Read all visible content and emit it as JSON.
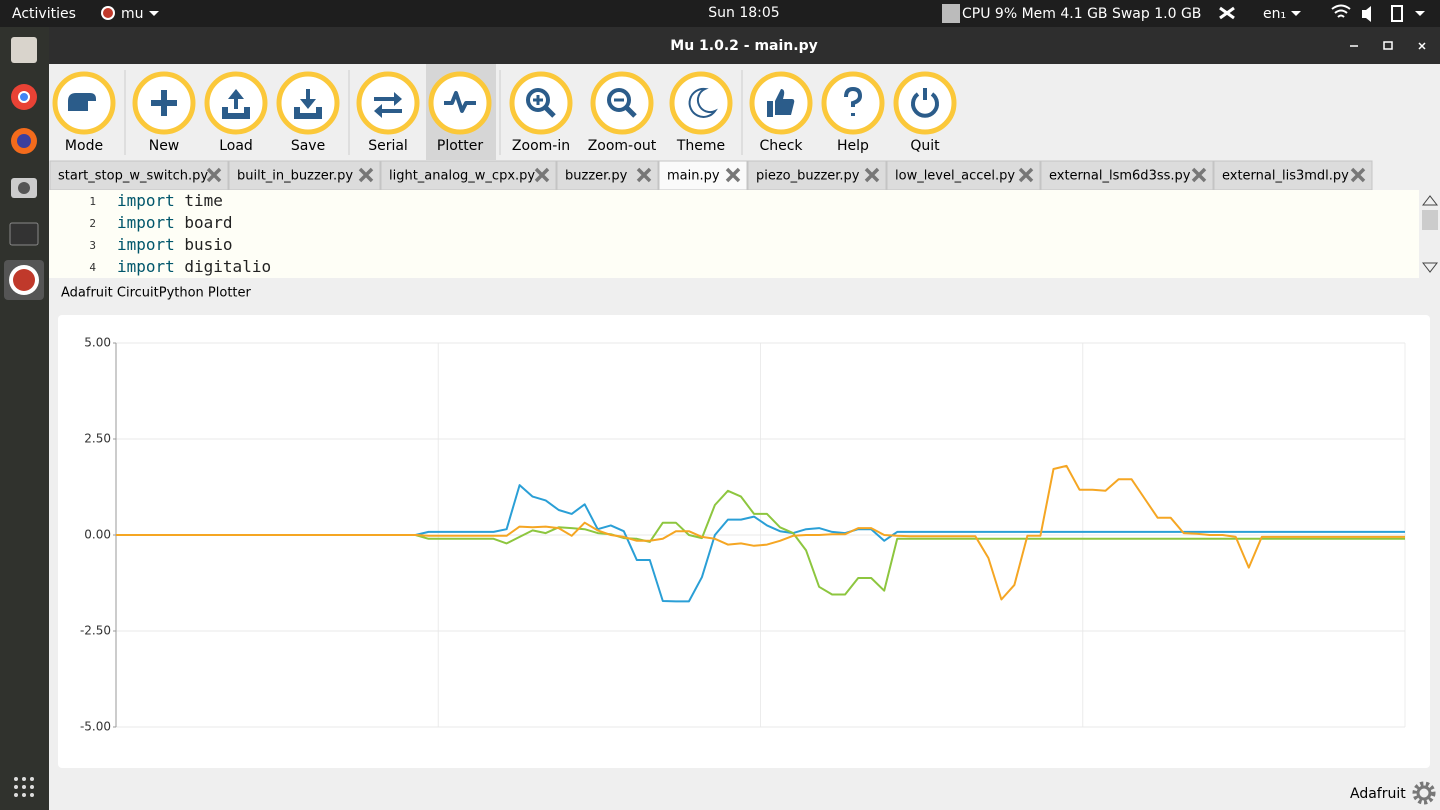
{
  "topbar": {
    "activities": "Activities",
    "app": "mu",
    "clock": "Sun 18:05",
    "sysmon": "CPU 9% Mem 4.1 GB Swap 1.0 GB",
    "lang": "en₁"
  },
  "window": {
    "title": "Mu 1.0.2 - main.py"
  },
  "toolbar": [
    "Mode",
    "New",
    "Load",
    "Save",
    "Serial",
    "Plotter",
    "Zoom-in",
    "Zoom-out",
    "Theme",
    "Check",
    "Help",
    "Quit"
  ],
  "active_button": 5,
  "tabs": [
    "start_stop_w_switch.py",
    "built_in_buzzer.py",
    "light_analog_w_cpx.py",
    "buzzer.py",
    "main.py",
    "piezo_buzzer.py",
    "low_level_accel.py",
    "external_lsm6d3ss.py",
    "external_lis3mdl.py"
  ],
  "active_tab": 4,
  "editor": {
    "lines": [
      {
        "number": 1,
        "keyword": "import",
        "name": "time"
      },
      {
        "number": 2,
        "keyword": "import",
        "name": "board"
      },
      {
        "number": 3,
        "keyword": "import",
        "name": "busio"
      },
      {
        "number": 4,
        "keyword": "import",
        "name": "digitalio"
      }
    ]
  },
  "plotter_title": "Adafruit CircuitPython Plotter",
  "status": "Adafruit",
  "chart_data": {
    "type": "line",
    "ylim": [
      -5,
      5
    ],
    "yticks": [
      {
        "value": 5,
        "label": "5.00"
      },
      {
        "value": 2.5,
        "label": "2.50"
      },
      {
        "value": 0,
        "label": "0.00"
      },
      {
        "value": -2.5,
        "label": "-2.50"
      },
      {
        "value": -5,
        "label": "-5.00"
      }
    ],
    "grid": true,
    "series": [
      {
        "color": "#2a9fd6",
        "values": [
          0,
          0,
          0,
          0,
          0,
          0,
          0,
          0,
          0,
          0,
          0,
          0,
          0,
          0,
          0,
          0,
          0,
          0,
          0,
          0,
          0,
          0,
          0,
          0,
          0.08,
          0.08,
          0.08,
          0.08,
          0.08,
          0.08,
          0.15,
          1.3,
          1.0,
          0.9,
          0.65,
          0.55,
          0.8,
          0.15,
          0.25,
          0.1,
          -0.65,
          -0.65,
          -1.72,
          -1.73,
          -1.73,
          -1.1,
          0.0,
          0.4,
          0.4,
          0.48,
          0.25,
          0.1,
          0.05,
          0.15,
          0.18,
          0.08,
          0.05,
          0.15,
          0.15,
          -0.15,
          0.08,
          0.08,
          0.08,
          0.08,
          0.08,
          0.08,
          0.08,
          0.08,
          0.08,
          0.08,
          0.08,
          0.08,
          0.08,
          0.08,
          0.08,
          0.08,
          0.08,
          0.08,
          0.08,
          0.08,
          0.08,
          0.08,
          0.08,
          0.08,
          0.08,
          0.08,
          0.08,
          0.08,
          0.08,
          0.08,
          0.08,
          0.08,
          0.08,
          0.08,
          0.08,
          0.08,
          0.08,
          0.08,
          0.08,
          0.08
        ]
      },
      {
        "color": "#8dc63f",
        "values": [
          0,
          0,
          0,
          0,
          0,
          0,
          0,
          0,
          0,
          0,
          0,
          0,
          0,
          0,
          0,
          0,
          0,
          0,
          0,
          0,
          0,
          0,
          0,
          0,
          -0.1,
          -0.1,
          -0.1,
          -0.1,
          -0.1,
          -0.1,
          -0.22,
          -0.05,
          0.12,
          0.05,
          0.2,
          0.18,
          0.15,
          0.05,
          0.02,
          -0.08,
          -0.1,
          -0.18,
          0.32,
          0.32,
          0.0,
          -0.08,
          0.78,
          1.15,
          1.0,
          0.55,
          0.55,
          0.2,
          0.05,
          -0.4,
          -1.35,
          -1.55,
          -1.55,
          -1.12,
          -1.12,
          -1.45,
          -0.1,
          -0.1,
          -0.1,
          -0.1,
          -0.1,
          -0.1,
          -0.1,
          -0.1,
          -0.1,
          -0.1,
          -0.1,
          -0.1,
          -0.1,
          -0.1,
          -0.1,
          -0.1,
          -0.1,
          -0.1,
          -0.1,
          -0.1,
          -0.1,
          -0.1,
          -0.1,
          -0.1,
          -0.1,
          -0.1,
          -0.1,
          -0.1,
          -0.1,
          -0.1,
          -0.1,
          -0.1,
          -0.1,
          -0.1,
          -0.1,
          -0.1,
          -0.1,
          -0.1,
          -0.1,
          -0.1
        ]
      },
      {
        "color": "#f5a623",
        "values": [
          0,
          0,
          0,
          0,
          0,
          0,
          0,
          0,
          0,
          0,
          0,
          0,
          0,
          0,
          0,
          0,
          0,
          0,
          0,
          0,
          0,
          0,
          0,
          0,
          -0.02,
          -0.02,
          -0.02,
          -0.02,
          -0.02,
          -0.02,
          -0.02,
          0.22,
          0.2,
          0.22,
          0.18,
          -0.02,
          0.32,
          0.12,
          0.0,
          -0.05,
          -0.15,
          -0.15,
          -0.1,
          0.1,
          0.1,
          -0.05,
          -0.1,
          -0.25,
          -0.22,
          -0.28,
          -0.25,
          -0.15,
          -0.02,
          0.0,
          0.0,
          0.02,
          0.02,
          0.18,
          0.18,
          0.0,
          -0.02,
          -0.03,
          -0.03,
          -0.03,
          -0.03,
          -0.03,
          -0.03,
          -0.6,
          -1.68,
          -1.3,
          -0.02,
          -0.02,
          1.72,
          1.8,
          1.18,
          1.18,
          1.15,
          1.45,
          1.45,
          0.95,
          0.45,
          0.45,
          0.05,
          0.03,
          0.0,
          0.0,
          -0.05,
          -0.85,
          -0.05,
          -0.05,
          -0.05,
          -0.05,
          -0.05,
          -0.05,
          -0.05,
          -0.05,
          -0.05,
          -0.05,
          -0.05,
          -0.05
        ]
      }
    ]
  }
}
